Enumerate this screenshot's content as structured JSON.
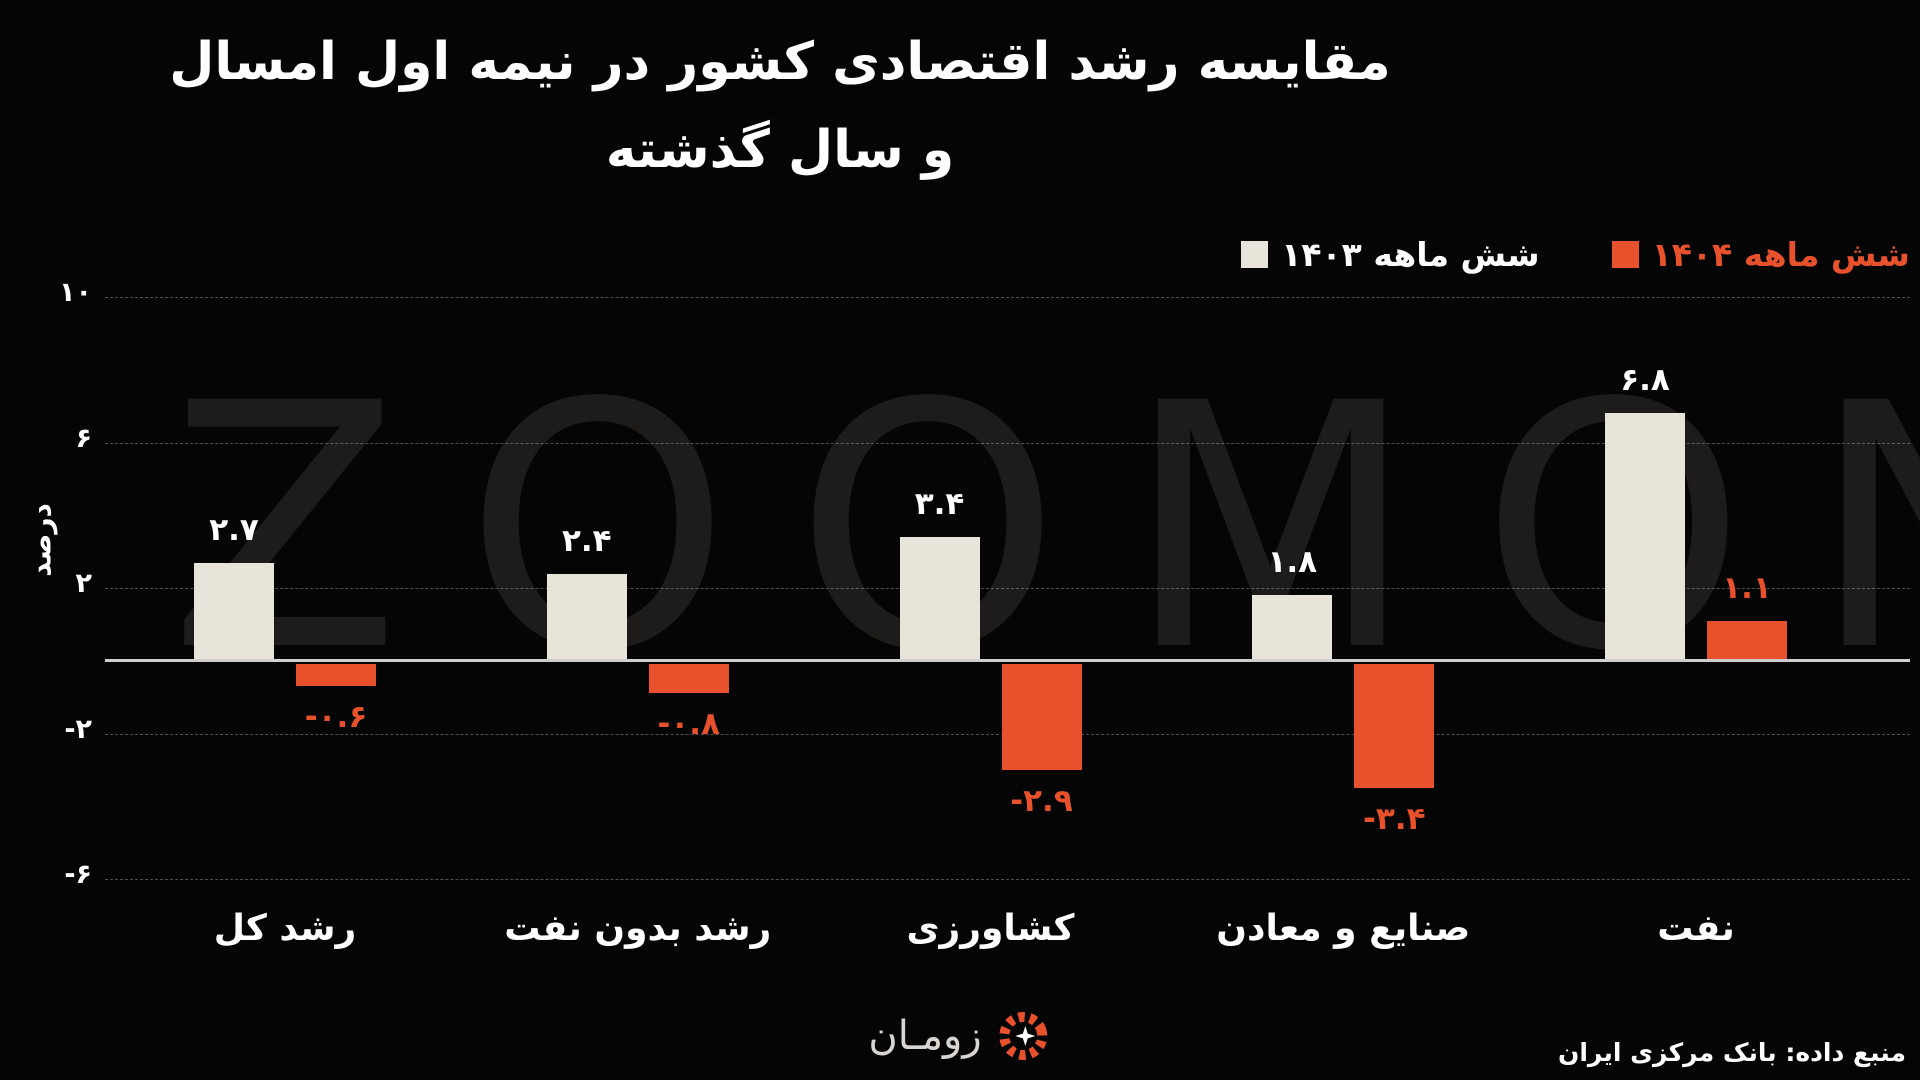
{
  "title": {
    "line1": "مقایسه رشد اقتصادی کشور در نیمه اول امسال",
    "line2": "و سال گذشته"
  },
  "watermark": "ZOOMON",
  "footer": {
    "brand": "زومـان",
    "source": "منبع داده: بانک مرکزی ایران"
  },
  "colors": {
    "background": "#050505",
    "series_1403": "#e9e4da",
    "series_1404": "#e7512b",
    "baseline": "#cfcfcf",
    "watermark": "#1d1c1a"
  },
  "chart_data": {
    "type": "bar",
    "title": "مقایسه رشد اقتصادی کشور در نیمه اول امسال و سال گذشته",
    "categories": [
      "رشد کل",
      "رشد بدون نفت",
      "کشاورزی",
      "صنایع و معادن",
      "نفت"
    ],
    "series": [
      {
        "name": "شش ماهه ۱۴۰۳",
        "color": "#e9e4da",
        "values": [
          2.7,
          2.4,
          3.4,
          1.8,
          6.8
        ],
        "labels": [
          "۲.۷",
          "۲.۴",
          "۳.۴",
          "۱.۸",
          "۶.۸"
        ]
      },
      {
        "name": "شش ماهه ۱۴۰۴",
        "color": "#e7512b",
        "values": [
          -0.6,
          -0.8,
          -2.9,
          -3.4,
          1.1
        ],
        "labels": [
          "-۰.۶",
          "-۰.۸",
          "-۲.۹",
          "-۳.۴",
          "۱.۱"
        ]
      }
    ],
    "xlabel": "",
    "ylabel": "درصد",
    "ylim": [
      -7.5,
      10.8
    ],
    "yticks": [
      {
        "value": 10,
        "label": "۱۰"
      },
      {
        "value": 6,
        "label": "۶"
      },
      {
        "value": 2,
        "label": "۲"
      },
      {
        "value": -2,
        "label": "-۲"
      },
      {
        "value": -6,
        "label": "-۶"
      }
    ],
    "grid": "horizontal-dashed",
    "legend_position": "top-right"
  }
}
